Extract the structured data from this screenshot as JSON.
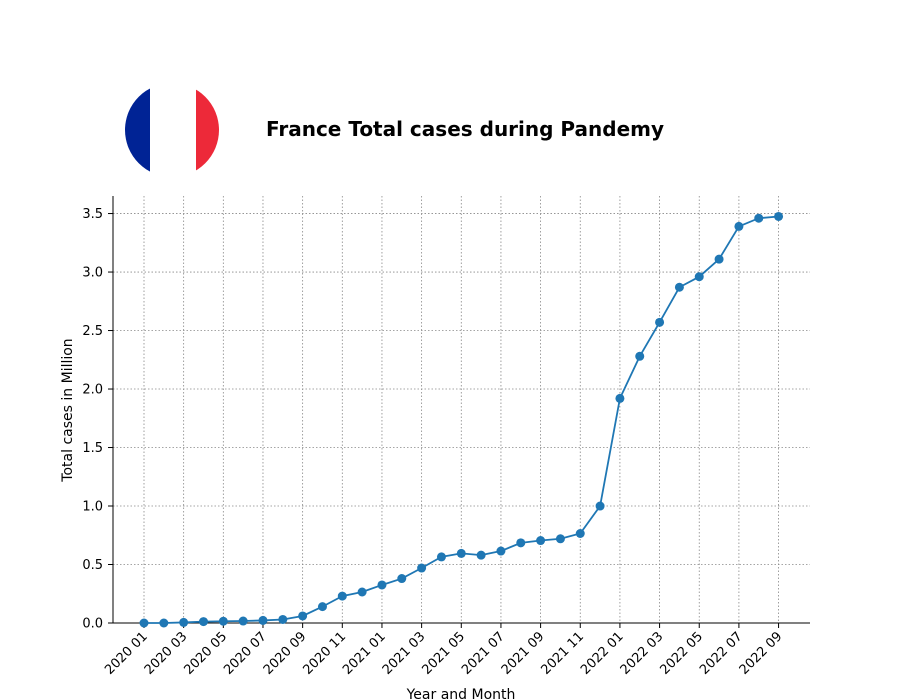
{
  "chart_data": {
    "type": "line",
    "title": "France Total cases during Pandemy",
    "xlabel": "Year and Month",
    "ylabel": "Total cases in Million",
    "flag": "france-flag",
    "ylim": [
      0,
      3.65
    ],
    "yticks": [
      0.0,
      0.5,
      1.0,
      1.5,
      2.0,
      2.5,
      3.0,
      3.5
    ],
    "ytick_labels": [
      "0.0",
      "0.5",
      "1.0",
      "1.5",
      "2.0",
      "2.5",
      "3.0",
      "3.5"
    ],
    "grid": true,
    "line_color": "#1f77b4",
    "flag_colors": {
      "blue": "#002395",
      "white": "#ffffff",
      "red": "#ed2939"
    },
    "x": [
      "2020 01",
      "2020 02",
      "2020 03",
      "2020 04",
      "2020 05",
      "2020 06",
      "2020 07",
      "2020 08",
      "2020 09",
      "2020 10",
      "2020 11",
      "2020 12",
      "2021 01",
      "2021 02",
      "2021 03",
      "2021 04",
      "2021 05",
      "2021 06",
      "2021 07",
      "2021 08",
      "2021 09",
      "2021 10",
      "2021 11",
      "2021 12",
      "2022 01",
      "2022 02",
      "2022 03",
      "2022 04",
      "2022 05",
      "2022 06",
      "2022 07",
      "2022 08",
      "2022 09"
    ],
    "xtick_labels": [
      "2020 01",
      "2020 03",
      "2020 05",
      "2020 07",
      "2020 09",
      "2020 11",
      "2021 01",
      "2021 03",
      "2021 05",
      "2021 07",
      "2021 09",
      "2021 11",
      "2022 01",
      "2022 03",
      "2022 05",
      "2022 07",
      "2022 09"
    ],
    "values": [
      0.0,
      0.0,
      0.005,
      0.012,
      0.015,
      0.017,
      0.022,
      0.03,
      0.06,
      0.14,
      0.23,
      0.265,
      0.325,
      0.38,
      0.47,
      0.565,
      0.595,
      0.58,
      0.615,
      0.685,
      0.705,
      0.72,
      0.765,
      1.0,
      1.92,
      2.28,
      2.57,
      2.87,
      2.96,
      3.11,
      3.39,
      3.46,
      3.475
    ]
  }
}
